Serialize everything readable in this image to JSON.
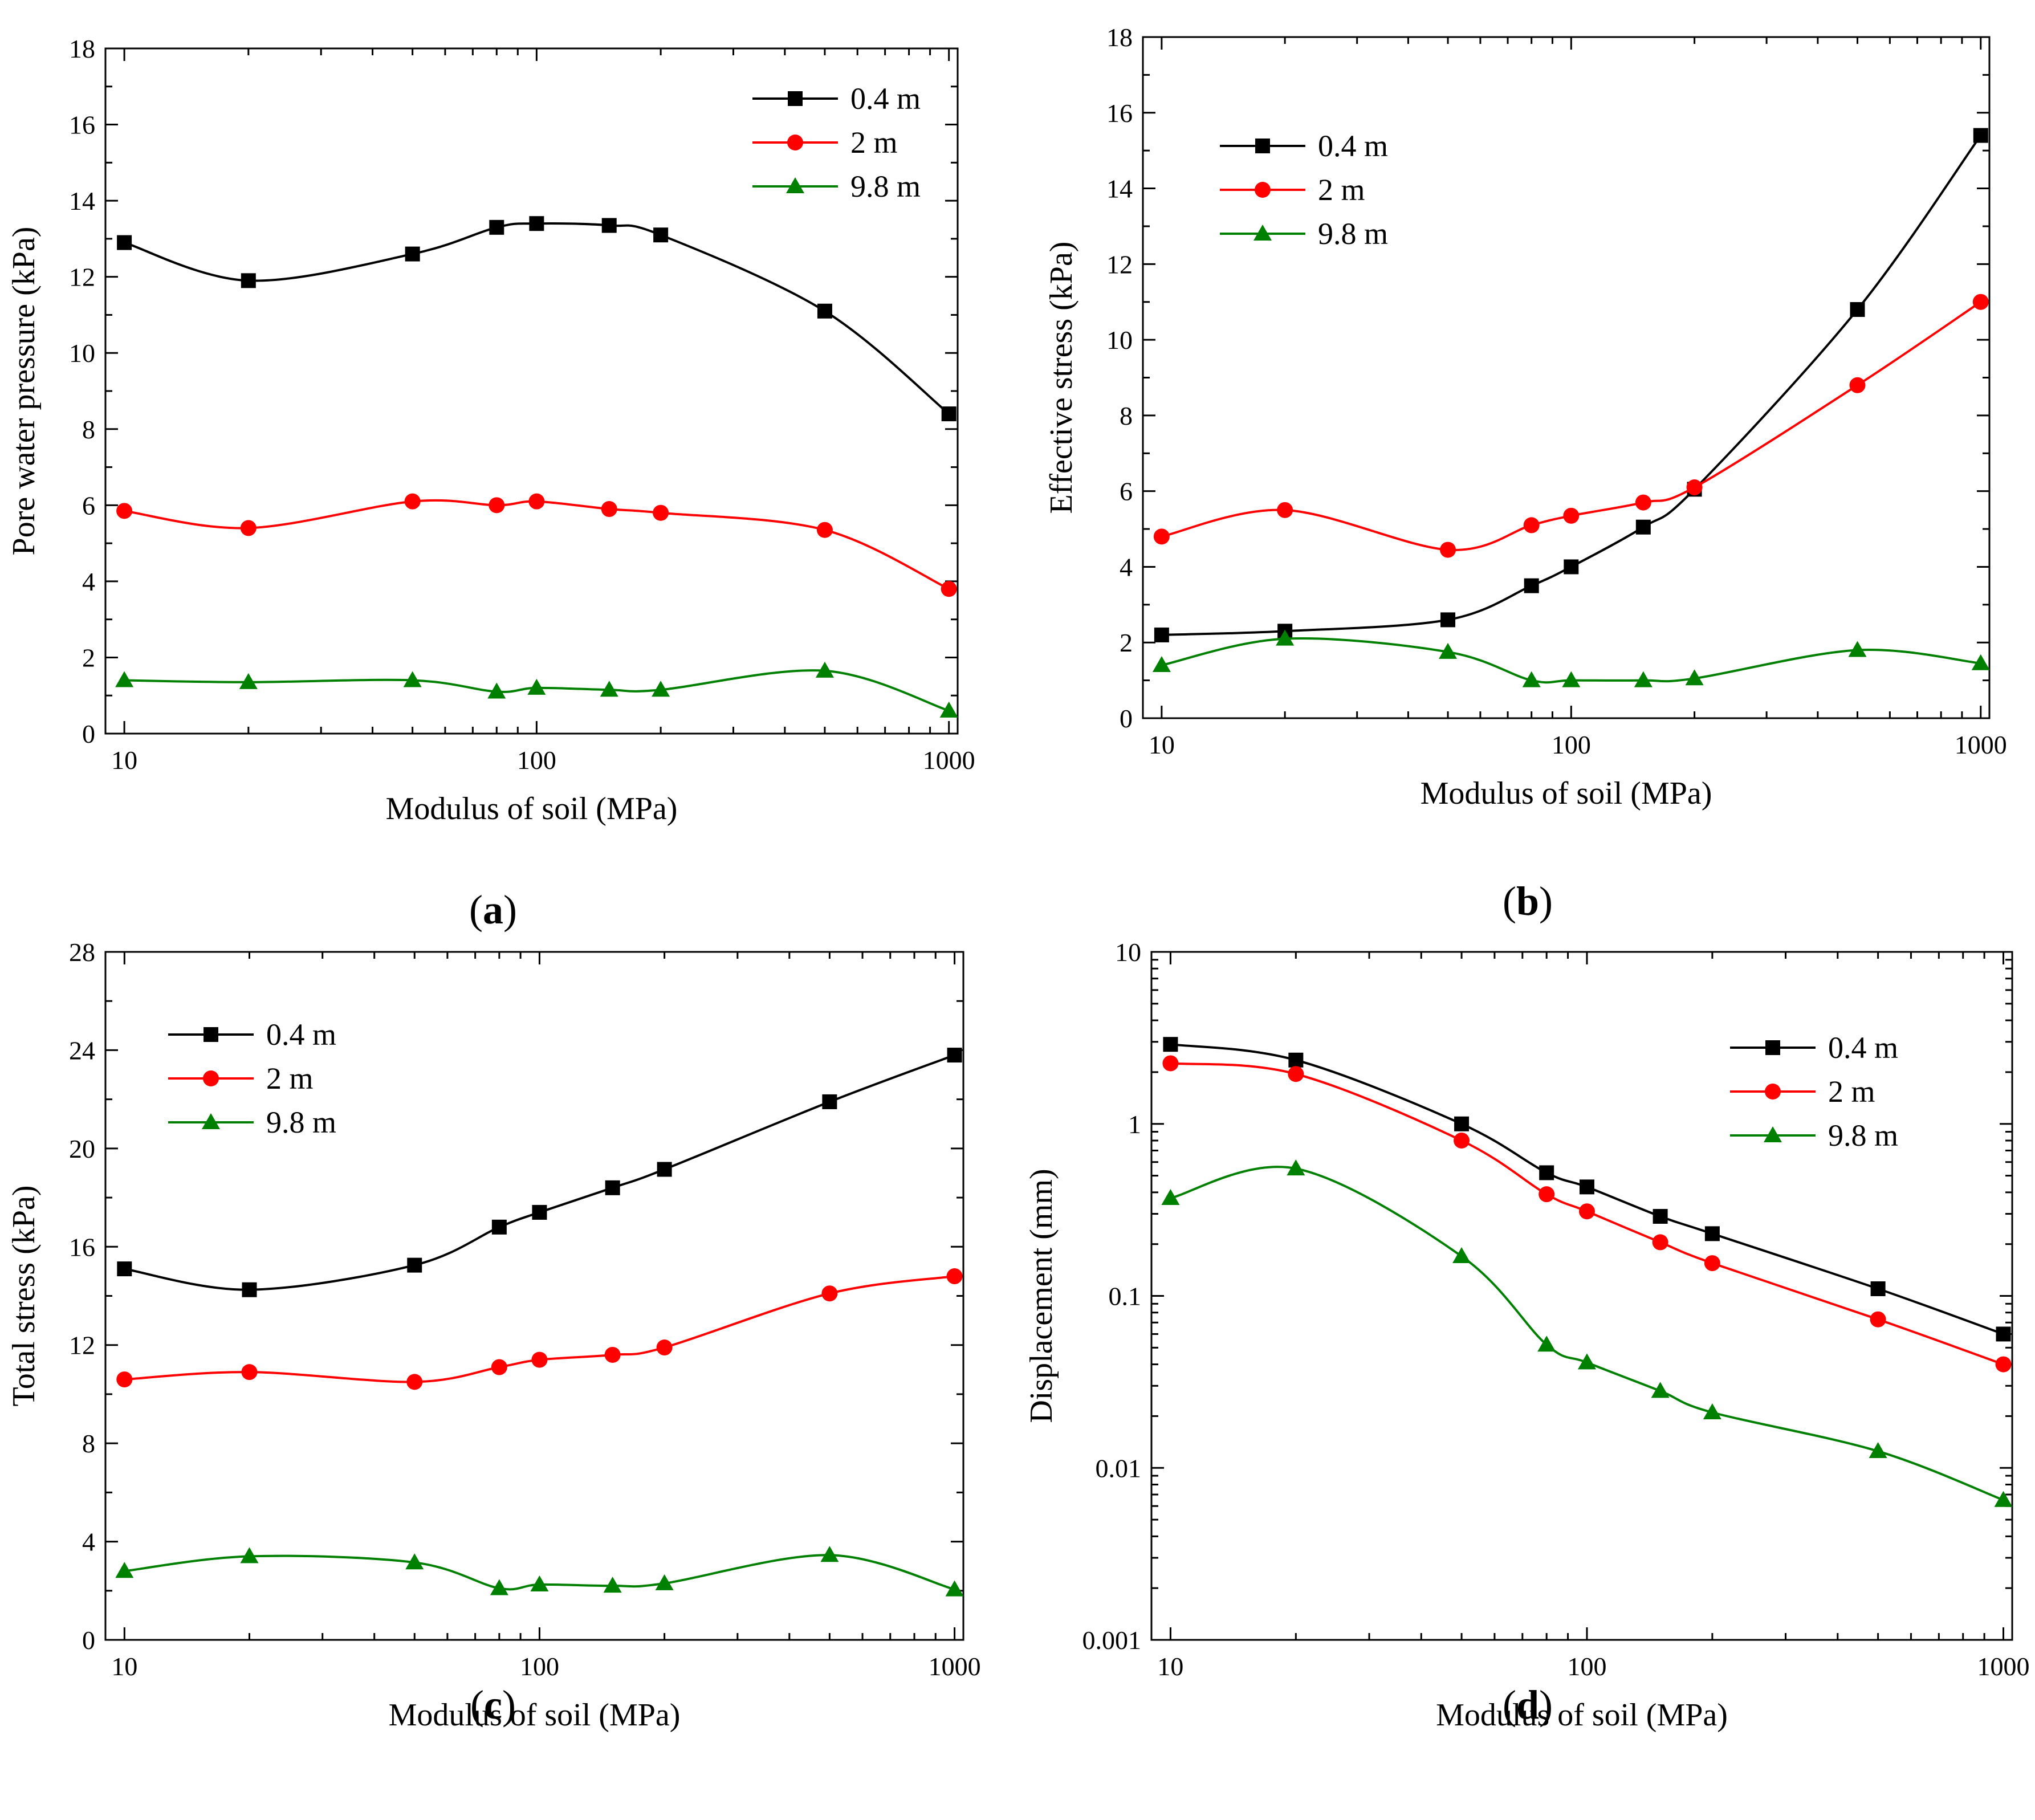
{
  "figure": {
    "chart_data": [
      {
        "id": "a",
        "type": "line",
        "panel_label": "a",
        "title": "",
        "xlabel": "Modulus of soil (MPa)",
        "ylabel": "Pore water pressure (kPa)",
        "xscale": "log",
        "yscale": "linear",
        "xlim": [
          9,
          1050
        ],
        "ylim": [
          0,
          18
        ],
        "xticks": [
          10,
          100,
          1000
        ],
        "xtick_labels": [
          "10",
          "100",
          "1000"
        ],
        "yticks": [
          0,
          2,
          4,
          6,
          8,
          10,
          12,
          14,
          16,
          18
        ],
        "ytick_labels": [
          "0",
          "2",
          "4",
          "6",
          "8",
          "10",
          "12",
          "14",
          "16",
          "18"
        ],
        "legend_position": "top-right",
        "series": [
          {
            "name": "0.4 m",
            "color": "#000000",
            "marker": "square",
            "x": [
              10,
              20,
              50,
              80,
              100,
              150,
              200,
              500,
              1000
            ],
            "y": [
              12.9,
              11.9,
              12.6,
              13.3,
              13.4,
              13.35,
              13.1,
              11.1,
              8.4
            ]
          },
          {
            "name": "2 m",
            "color": "#ff0000",
            "marker": "circle",
            "x": [
              10,
              20,
              50,
              80,
              100,
              150,
              200,
              500,
              1000
            ],
            "y": [
              5.85,
              5.4,
              6.1,
              6.0,
              6.1,
              5.9,
              5.8,
              5.35,
              3.8
            ]
          },
          {
            "name": "9.8 m",
            "color": "#008000",
            "marker": "triangle",
            "x": [
              10,
              20,
              50,
              80,
              100,
              150,
              200,
              500,
              1000
            ],
            "y": [
              1.4,
              1.35,
              1.4,
              1.1,
              1.2,
              1.15,
              1.15,
              1.65,
              0.6
            ]
          }
        ]
      },
      {
        "id": "b",
        "type": "line",
        "panel_label": "b",
        "title": "",
        "xlabel": "Modulus of soil (MPa)",
        "ylabel": "Effective stress (kPa)",
        "xscale": "log",
        "yscale": "linear",
        "xlim": [
          9,
          1050
        ],
        "ylim": [
          0,
          18
        ],
        "xticks": [
          10,
          100,
          1000
        ],
        "xtick_labels": [
          "10",
          "100",
          "1000"
        ],
        "yticks": [
          0,
          2,
          4,
          6,
          8,
          10,
          12,
          14,
          16,
          18
        ],
        "ytick_labels": [
          "0",
          "2",
          "4",
          "6",
          "8",
          "10",
          "12",
          "14",
          "16",
          "18"
        ],
        "legend_position": "top-left",
        "series": [
          {
            "name": "0.4 m",
            "color": "#000000",
            "marker": "square",
            "x": [
              10,
              20,
              50,
              80,
              100,
              150,
              200,
              500,
              1000
            ],
            "y": [
              2.2,
              2.3,
              2.6,
              3.5,
              4.0,
              5.05,
              6.05,
              10.8,
              15.4
            ]
          },
          {
            "name": "2 m",
            "color": "#ff0000",
            "marker": "circle",
            "x": [
              10,
              20,
              50,
              80,
              100,
              150,
              200,
              500,
              1000
            ],
            "y": [
              4.8,
              5.5,
              4.45,
              5.1,
              5.35,
              5.7,
              6.1,
              8.8,
              11.0
            ]
          },
          {
            "name": "9.8 m",
            "color": "#008000",
            "marker": "triangle",
            "x": [
              10,
              20,
              50,
              80,
              100,
              150,
              200,
              500,
              1000
            ],
            "y": [
              1.4,
              2.1,
              1.75,
              1.0,
              1.0,
              1.0,
              1.05,
              1.8,
              1.45
            ]
          }
        ]
      },
      {
        "id": "c",
        "type": "line",
        "panel_label": "c",
        "title": "",
        "xlabel": "Modulus of soil (MPa)",
        "ylabel": "Total stress (kPa)",
        "xscale": "log",
        "yscale": "linear",
        "xlim": [
          9,
          1050
        ],
        "ylim": [
          0,
          28
        ],
        "xticks": [
          10,
          100,
          1000
        ],
        "xtick_labels": [
          "10",
          "100",
          "1000"
        ],
        "yticks": [
          0,
          4,
          8,
          12,
          16,
          20,
          24,
          28
        ],
        "ytick_labels": [
          "0",
          "4",
          "8",
          "12",
          "16",
          "20",
          "24",
          "28"
        ],
        "legend_position": "top-left",
        "series": [
          {
            "name": "0.4 m",
            "color": "#000000",
            "marker": "square",
            "x": [
              10,
              20,
              50,
              80,
              100,
              150,
              200,
              500,
              1000
            ],
            "y": [
              15.1,
              14.25,
              15.25,
              16.8,
              17.4,
              18.4,
              19.15,
              21.9,
              23.8
            ]
          },
          {
            "name": "2 m",
            "color": "#ff0000",
            "marker": "circle",
            "x": [
              10,
              20,
              50,
              80,
              100,
              150,
              200,
              500,
              1000
            ],
            "y": [
              10.6,
              10.9,
              10.5,
              11.1,
              11.4,
              11.6,
              11.9,
              14.1,
              14.8
            ]
          },
          {
            "name": "9.8 m",
            "color": "#008000",
            "marker": "triangle",
            "x": [
              10,
              20,
              50,
              80,
              100,
              150,
              200,
              500,
              1000
            ],
            "y": [
              2.8,
              3.4,
              3.15,
              2.1,
              2.25,
              2.2,
              2.3,
              3.45,
              2.05
            ]
          }
        ]
      },
      {
        "id": "d",
        "type": "line",
        "panel_label": "d",
        "title": "",
        "xlabel": "Modulus of soil (MPa)",
        "ylabel": "Displacement (mm)",
        "xscale": "log",
        "yscale": "log",
        "xlim": [
          9,
          1050
        ],
        "ylim": [
          0.001,
          10
        ],
        "xticks": [
          10,
          100,
          1000
        ],
        "xtick_labels": [
          "10",
          "100",
          "1000"
        ],
        "yticks": [
          0.001,
          0.01,
          0.1,
          1,
          10
        ],
        "ytick_labels": [
          "0.001",
          "0.01",
          "0.1",
          "1",
          "10"
        ],
        "legend_position": "top-right",
        "series": [
          {
            "name": "0.4 m",
            "color": "#000000",
            "marker": "square",
            "x": [
              10,
              20,
              50,
              80,
              100,
              150,
              200,
              500,
              1000
            ],
            "y": [
              2.9,
              2.35,
              1.0,
              0.52,
              0.43,
              0.29,
              0.23,
              0.11,
              0.06
            ]
          },
          {
            "name": "2 m",
            "color": "#ff0000",
            "marker": "circle",
            "x": [
              10,
              20,
              50,
              80,
              100,
              150,
              200,
              500,
              1000
            ],
            "y": [
              2.25,
              1.95,
              0.8,
              0.39,
              0.31,
              0.205,
              0.155,
              0.073,
              0.04
            ]
          },
          {
            "name": "9.8 m",
            "color": "#008000",
            "marker": "triangle",
            "x": [
              10,
              20,
              50,
              80,
              100,
              150,
              200,
              500,
              1000
            ],
            "y": [
              0.37,
              0.55,
              0.17,
              0.052,
              0.041,
              0.028,
              0.021,
              0.0125,
              0.0065
            ]
          }
        ]
      }
    ]
  }
}
